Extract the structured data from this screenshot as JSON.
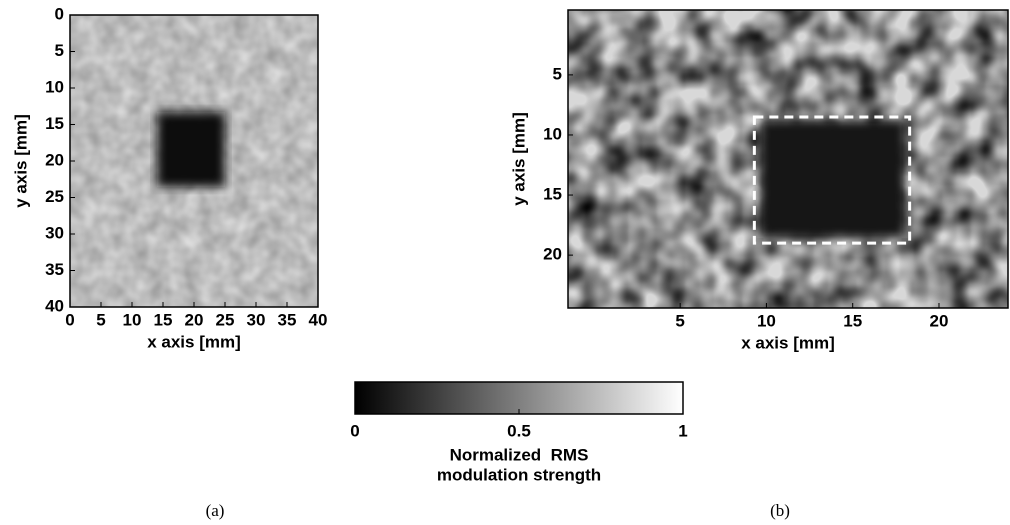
{
  "chart_data": [
    {
      "type": "heatmap",
      "xlim": [
        0,
        40
      ],
      "ylim": [
        0,
        40
      ],
      "y_reversed": true,
      "xticks": [
        0,
        5,
        10,
        15,
        20,
        25,
        30,
        35,
        40
      ],
      "yticks": [
        0,
        5,
        10,
        15,
        20,
        25,
        30,
        35,
        40
      ],
      "xlabel": "x axis [mm]",
      "ylabel": "y axis [mm]",
      "caption": "(a)"
    },
    {
      "type": "heatmap",
      "xlim": [
        -1.5,
        24
      ],
      "ylim": [
        -0.4,
        24.4
      ],
      "y_reversed": true,
      "xticks": [
        5,
        10,
        15,
        20
      ],
      "yticks": [
        5,
        10,
        15,
        20
      ],
      "xlabel": "x axis [mm]",
      "ylabel": "y axis [mm]",
      "caption": "(b)",
      "highlight_box": {
        "x": [
          9.3,
          18.3
        ],
        "y": [
          8.5,
          19
        ],
        "color": "#ffffff"
      }
    },
    {
      "type": "colorbar",
      "colormap": "gray",
      "clim": [
        0,
        1
      ],
      "ticks": [
        0,
        0.5,
        1
      ],
      "label": [
        "Normalized  RMS",
        "modulation strength"
      ]
    }
  ]
}
